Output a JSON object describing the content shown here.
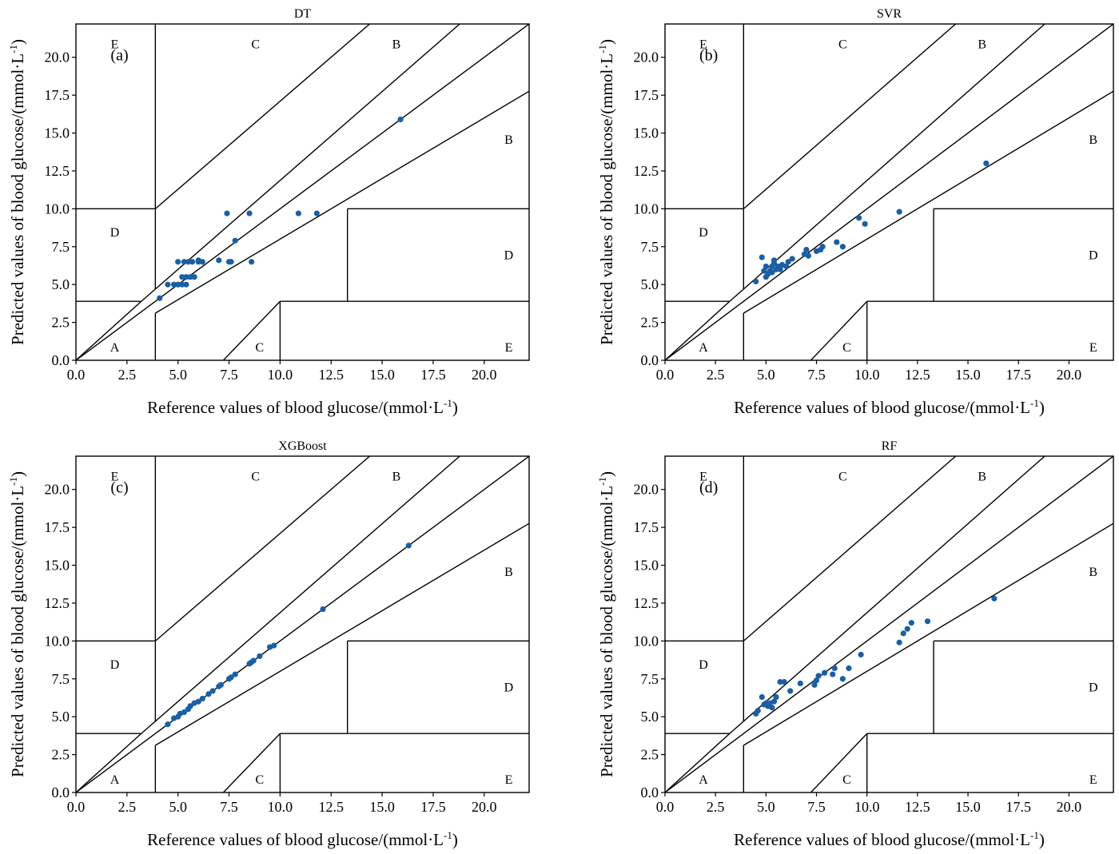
{
  "colors": {
    "points": "#1a5fa3",
    "lines": "#000000"
  },
  "axes": {
    "xlabel": "Reference values of blood glucose/(mmol·L",
    "ylabel": "Predicted values of blood glucose/(mmol·L",
    "unit_exp": "-1",
    "unit_close": ")",
    "ticks": [
      0,
      2.5,
      5,
      7.5,
      10,
      12.5,
      15,
      17.5,
      20
    ],
    "tick_labels": [
      "0.0",
      "2.5",
      "5.0",
      "7.5",
      "10.0",
      "12.5",
      "15.0",
      "17.5",
      "20.0"
    ],
    "range": [
      0,
      22.2
    ]
  },
  "chart_data": [
    {
      "type": "scatter",
      "title": "DT",
      "panel_label": "(a)",
      "zone_labels": [
        "A",
        "B",
        "B",
        "C",
        "C",
        "D",
        "D",
        "E",
        "E"
      ],
      "x": [
        4.1,
        4.5,
        4.8,
        5.0,
        5.2,
        5.0,
        5.3,
        5.5,
        5.7,
        6.0,
        5.2,
        5.4,
        5.6,
        5.0,
        5.4,
        5.8,
        6.0,
        6.2,
        7.0,
        7.4,
        7.6,
        7.5,
        7.8,
        8.5,
        8.6,
        10.9,
        11.8,
        15.9
      ],
      "y": [
        4.1,
        5.0,
        5.0,
        5.0,
        5.0,
        6.5,
        6.5,
        6.5,
        6.5,
        6.6,
        5.5,
        5.5,
        5.5,
        5.0,
        5.0,
        5.5,
        6.5,
        6.5,
        6.6,
        9.7,
        6.5,
        6.5,
        7.9,
        9.7,
        6.5,
        9.7,
        9.7,
        15.9
      ]
    },
    {
      "type": "scatter",
      "title": "SVR",
      "panel_label": "(b)",
      "zone_labels": [
        "A",
        "B",
        "B",
        "C",
        "C",
        "D",
        "D",
        "E",
        "E"
      ],
      "x": [
        4.5,
        4.8,
        4.9,
        5.0,
        5.0,
        5.1,
        5.2,
        5.3,
        5.3,
        5.4,
        5.4,
        5.5,
        5.6,
        5.7,
        5.8,
        6.0,
        6.1,
        6.3,
        6.9,
        7.0,
        7.1,
        7.5,
        7.7,
        7.8,
        8.5,
        8.8,
        9.6,
        9.9,
        11.6,
        15.9
      ],
      "y": [
        5.2,
        6.8,
        5.9,
        6.2,
        5.5,
        5.7,
        5.9,
        5.8,
        6.2,
        6.4,
        6.6,
        6.0,
        6.2,
        6.0,
        6.3,
        6.2,
        6.5,
        6.7,
        7.0,
        7.3,
        6.9,
        7.2,
        7.3,
        7.5,
        7.8,
        7.5,
        9.4,
        9.0,
        9.8,
        13.0
      ],
      "unit_exp": "-1"
    },
    {
      "type": "scatter",
      "title": "XGBoost",
      "panel_label": "(c)",
      "zone_labels": [
        "A",
        "B",
        "B",
        "C",
        "C",
        "D",
        "D",
        "E",
        "E"
      ],
      "x": [
        4.5,
        4.8,
        5.0,
        5.1,
        5.3,
        5.5,
        5.6,
        5.8,
        6.0,
        6.2,
        6.5,
        6.7,
        7.0,
        7.1,
        7.5,
        7.6,
        7.8,
        8.5,
        8.6,
        8.7,
        9.0,
        9.5,
        9.7,
        12.1,
        16.3
      ],
      "y": [
        4.5,
        4.9,
        5.0,
        5.2,
        5.3,
        5.5,
        5.7,
        5.9,
        6.0,
        6.2,
        6.5,
        6.7,
        7.0,
        7.1,
        7.5,
        7.6,
        7.8,
        8.5,
        8.6,
        8.7,
        9.0,
        9.6,
        9.7,
        12.1,
        16.3
      ]
    },
    {
      "type": "scatter",
      "title": "RF",
      "panel_label": "(d)",
      "zone_labels": [
        "A",
        "B",
        "B",
        "C",
        "C",
        "D",
        "D",
        "E",
        "E"
      ],
      "x": [
        4.5,
        4.6,
        4.8,
        4.9,
        5.0,
        5.1,
        5.2,
        5.3,
        5.4,
        5.5,
        5.7,
        5.9,
        6.2,
        6.7,
        7.4,
        7.5,
        7.6,
        7.9,
        8.3,
        8.4,
        8.8,
        9.1,
        9.7,
        11.6,
        11.8,
        12.0,
        12.2,
        13.0,
        16.3
      ],
      "y": [
        5.2,
        5.4,
        6.3,
        5.8,
        5.9,
        5.7,
        5.9,
        5.6,
        6.0,
        6.3,
        7.3,
        7.3,
        6.7,
        7.2,
        7.1,
        7.4,
        7.7,
        7.9,
        7.8,
        8.2,
        7.5,
        8.2,
        9.1,
        9.9,
        10.5,
        10.8,
        11.2,
        11.3,
        12.8
      ]
    }
  ]
}
